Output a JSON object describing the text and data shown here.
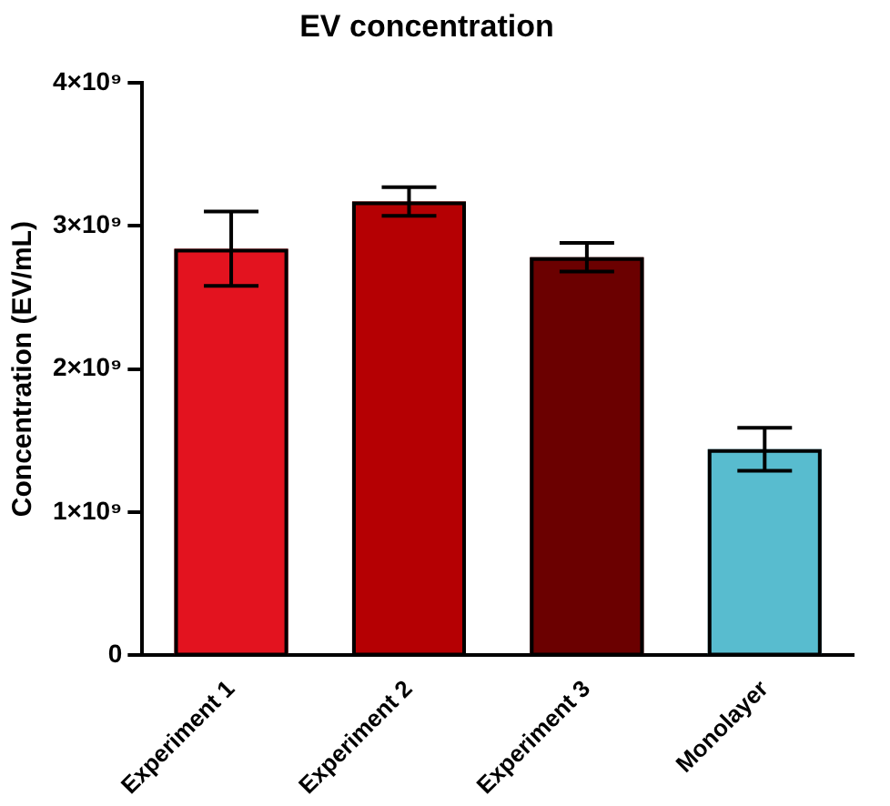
{
  "chart_data": {
    "type": "bar",
    "title": "EV concentration",
    "ylabel": "Concentration (EV/mL)",
    "categories": [
      "Experiment 1",
      "Experiment 2",
      "Experiment 3",
      "Monolayer"
    ],
    "values": [
      2840000000,
      3170000000,
      2780000000,
      1440000000
    ],
    "colors": [
      "#e3131f",
      "#b50003",
      "#6b0000",
      "#58bccf"
    ],
    "errors": [
      260000000,
      100000000,
      100000000,
      150000000
    ],
    "ylim": [
      0,
      4000000000
    ],
    "yticks": [
      {
        "value": 0,
        "label": "0"
      },
      {
        "value": 1000000000,
        "label": "1×10⁹"
      },
      {
        "value": 2000000000,
        "label": "2×10⁹"
      },
      {
        "value": 3000000000,
        "label": "3×10⁹"
      },
      {
        "value": 4000000000,
        "label": "4×10⁹"
      }
    ],
    "grid": false,
    "legend": false
  }
}
